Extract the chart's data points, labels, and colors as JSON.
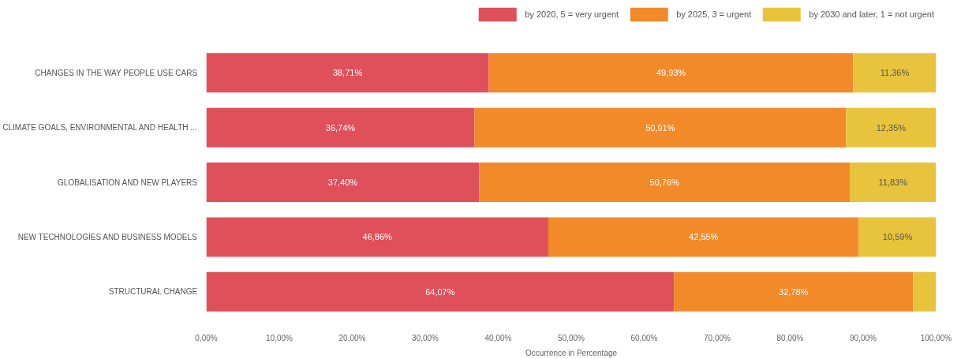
{
  "chart_data": {
    "type": "bar",
    "orientation": "horizontal",
    "stacked": true,
    "categories": [
      "CHANGES IN THE WAY PEOPLE USE CARS",
      "CLIMATE GOALS, ENVIRONMENTAL AND HEALTH ...",
      "GLOBALISATION AND NEW PLAYERS",
      "NEW TECHNOLOGIES AND BUSINESS MODELS",
      "STRUCTURAL CHANGE"
    ],
    "series": [
      {
        "name": "by 2020, 5 = very urgent",
        "color": "#e0505a",
        "values": [
          38.71,
          36.74,
          37.4,
          46.86,
          64.07
        ],
        "value_labels": [
          "38,71%",
          "36,74%",
          "37,40%",
          "46,86%",
          "64,07%"
        ]
      },
      {
        "name": "by 2025, 3 = urgent",
        "color": "#f28a2a",
        "values": [
          49.93,
          50.91,
          50.76,
          42.55,
          32.78
        ],
        "value_labels": [
          "49,93%",
          "50,91%",
          "50,76%",
          "42,55%",
          "32,78%"
        ]
      },
      {
        "name": "by 2030 and later, 1 = not urgent",
        "color": "#e8c43c",
        "values": [
          11.36,
          12.35,
          11.83,
          10.59,
          3.15
        ],
        "value_labels": [
          "11,36%",
          "12,35%",
          "11,83%",
          "10,59%",
          null
        ]
      }
    ],
    "xlabel": "Occurrence in Percentage",
    "xlim": [
      0,
      100
    ],
    "xticks": [
      {
        "value": 0,
        "label": "0,00%"
      },
      {
        "value": 10,
        "label": "10,00%"
      },
      {
        "value": 20,
        "label": "20,00%"
      },
      {
        "value": 30,
        "label": "30,00%"
      },
      {
        "value": 40,
        "label": "40,00%"
      },
      {
        "value": 50,
        "label": "50,00%"
      },
      {
        "value": 60,
        "label": "60,00%"
      },
      {
        "value": 70,
        "label": "70,00%"
      },
      {
        "value": 80,
        "label": "80,00%"
      },
      {
        "value": 90,
        "label": "90,00%"
      },
      {
        "value": 100,
        "label": "100,00%"
      }
    ],
    "grid": false,
    "legend": "top right"
  }
}
